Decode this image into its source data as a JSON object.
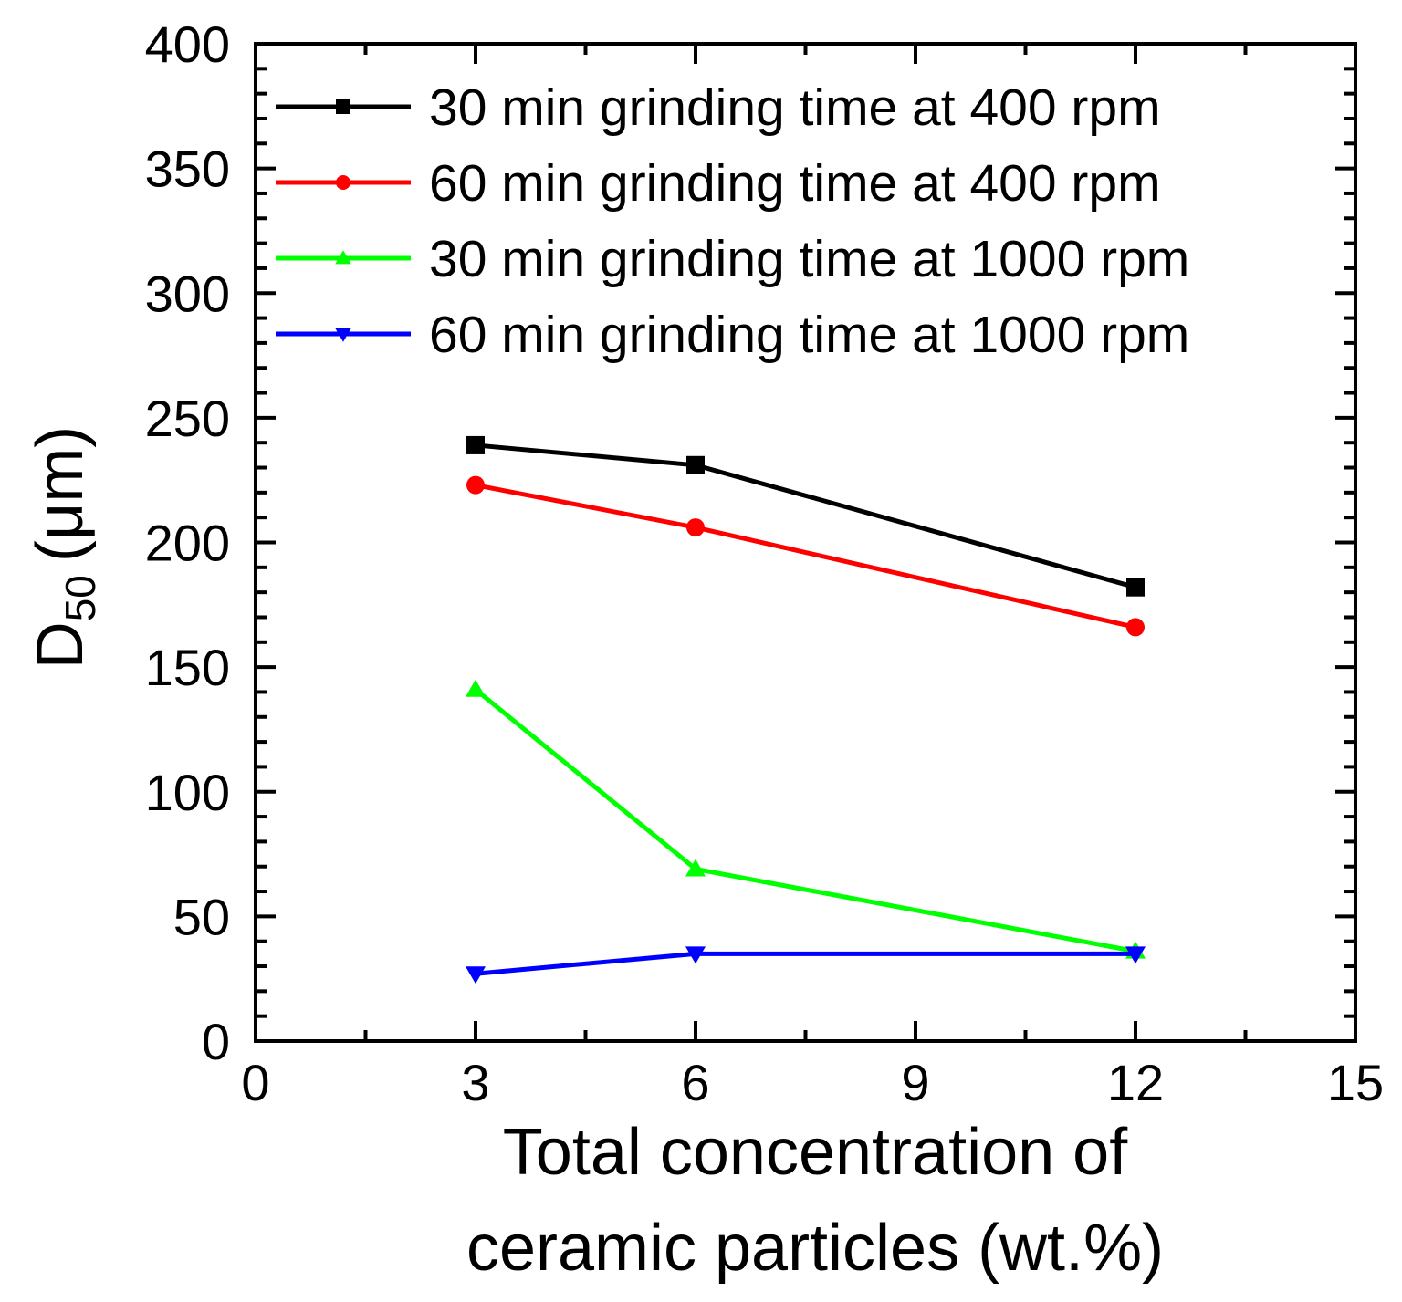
{
  "chart_data": {
    "type": "line",
    "title": "",
    "xlabel_line1": "Total concentration of",
    "xlabel_line2": "ceramic particles (wt.%)",
    "ylabel_main": "D",
    "ylabel_sub": "50",
    "ylabel_unit": "(μm)",
    "xlim": [
      0,
      15
    ],
    "ylim": [
      0,
      400
    ],
    "x_ticks": [
      0,
      3,
      6,
      9,
      12,
      15
    ],
    "y_ticks": [
      0,
      50,
      100,
      150,
      200,
      250,
      300,
      350,
      400
    ],
    "grid": false,
    "legend_position": "top-right",
    "series": [
      {
        "name": "30 min grinding time at 400 rpm",
        "color": "#000000",
        "marker": "square",
        "x": [
          3,
          6,
          12
        ],
        "y": [
          239,
          231,
          182
        ]
      },
      {
        "name": "60 min grinding time at 400 rpm",
        "color": "#ff0000",
        "marker": "circle",
        "x": [
          3,
          6,
          12
        ],
        "y": [
          223,
          206,
          166
        ]
      },
      {
        "name": "30 min grinding time at 1000 rpm",
        "color": "#00ff00",
        "marker": "triangle-up",
        "x": [
          3,
          6,
          12
        ],
        "y": [
          141,
          69,
          36
        ]
      },
      {
        "name": "60 min grinding time at 1000 rpm",
        "color": "#0000ff",
        "marker": "triangle-down",
        "x": [
          3,
          6,
          12
        ],
        "y": [
          27,
          35,
          35
        ]
      }
    ]
  }
}
